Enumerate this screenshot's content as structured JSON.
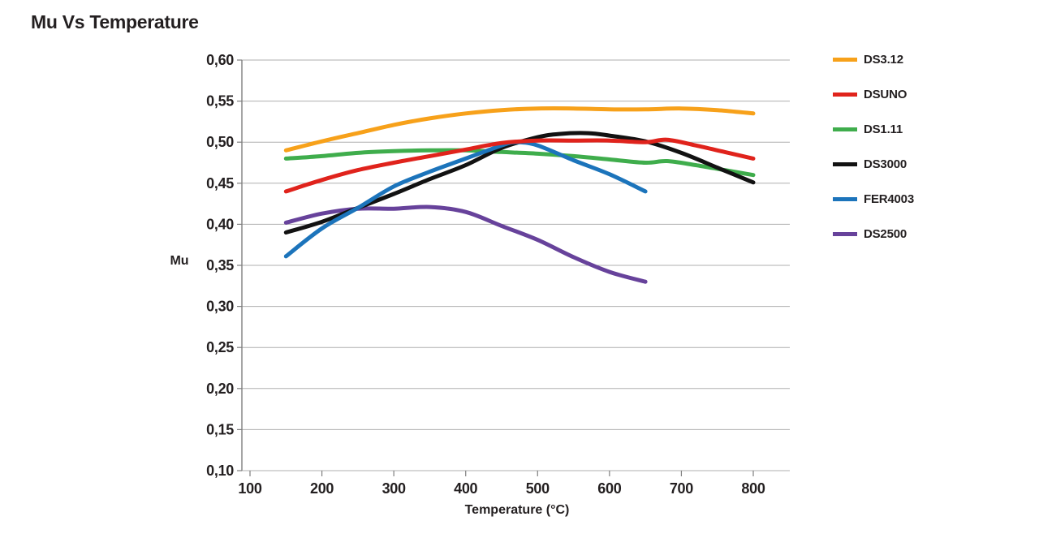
{
  "title": "Mu Vs Temperature",
  "colors": {
    "text": "#231F20",
    "grid": "#AFAFAF",
    "axis": "#7F7F7F",
    "background": "#FFFFFF"
  },
  "chart_data": {
    "type": "line",
    "title": "Mu Vs Temperature",
    "xlabel": "Temperature (°C)",
    "ylabel": "Mu",
    "xlim": [
      88,
      851
    ],
    "ylim": [
      0.1,
      0.6
    ],
    "x_ticks": [
      100,
      200,
      300,
      400,
      500,
      600,
      700,
      800
    ],
    "x_tick_labels": [
      "100",
      "200",
      "300",
      "400",
      "500",
      "600",
      "700",
      "800"
    ],
    "y_ticks": [
      0.1,
      0.15,
      0.2,
      0.25,
      0.3,
      0.35,
      0.4,
      0.45,
      0.5,
      0.55,
      0.6
    ],
    "y_tick_labels": [
      "0,10",
      "0,15",
      "0,20",
      "0,25",
      "0,30",
      "0,35",
      "0,40",
      "0,45",
      "0,50",
      "0,55",
      "0,60"
    ],
    "decimal_separator": ",",
    "grid": "horizontal",
    "legend_position": "right",
    "z_order": [
      "DS2500",
      "DS1.11",
      "DS3.12",
      "DS3000",
      "FER4003",
      "DSUNO"
    ],
    "series": [
      {
        "name": "DS3.12",
        "color": "#F7A11A",
        "points": [
          [
            150,
            0.49
          ],
          [
            200,
            0.501
          ],
          [
            250,
            0.511
          ],
          [
            300,
            0.521
          ],
          [
            350,
            0.529
          ],
          [
            400,
            0.535
          ],
          [
            450,
            0.539
          ],
          [
            500,
            0.541
          ],
          [
            550,
            0.541
          ],
          [
            600,
            0.54
          ],
          [
            650,
            0.54
          ],
          [
            700,
            0.541
          ],
          [
            750,
            0.539
          ],
          [
            800,
            0.535
          ]
        ]
      },
      {
        "name": "DSUNO",
        "color": "#E0231C",
        "points": [
          [
            150,
            0.44
          ],
          [
            200,
            0.454
          ],
          [
            250,
            0.466
          ],
          [
            300,
            0.475
          ],
          [
            350,
            0.483
          ],
          [
            400,
            0.491
          ],
          [
            450,
            0.499
          ],
          [
            500,
            0.502
          ],
          [
            550,
            0.502
          ],
          [
            600,
            0.502
          ],
          [
            650,
            0.5
          ],
          [
            680,
            0.503
          ],
          [
            720,
            0.496
          ],
          [
            760,
            0.488
          ],
          [
            800,
            0.48
          ]
        ]
      },
      {
        "name": "DS1.11",
        "color": "#3FAD4C",
        "points": [
          [
            150,
            0.48
          ],
          [
            200,
            0.483
          ],
          [
            250,
            0.487
          ],
          [
            300,
            0.489
          ],
          [
            350,
            0.49
          ],
          [
            400,
            0.49
          ],
          [
            450,
            0.488
          ],
          [
            500,
            0.486
          ],
          [
            550,
            0.483
          ],
          [
            600,
            0.479
          ],
          [
            650,
            0.475
          ],
          [
            680,
            0.477
          ],
          [
            720,
            0.472
          ],
          [
            760,
            0.466
          ],
          [
            800,
            0.46
          ]
        ]
      },
      {
        "name": "DS3000",
        "color": "#121212",
        "points": [
          [
            150,
            0.39
          ],
          [
            200,
            0.403
          ],
          [
            250,
            0.42
          ],
          [
            300,
            0.437
          ],
          [
            350,
            0.455
          ],
          [
            400,
            0.472
          ],
          [
            450,
            0.493
          ],
          [
            500,
            0.506
          ],
          [
            530,
            0.51
          ],
          [
            570,
            0.511
          ],
          [
            600,
            0.508
          ],
          [
            650,
            0.501
          ],
          [
            700,
            0.487
          ],
          [
            750,
            0.469
          ],
          [
            800,
            0.451
          ]
        ]
      },
      {
        "name": "FER4003",
        "color": "#1C74BB",
        "points": [
          [
            150,
            0.361
          ],
          [
            200,
            0.395
          ],
          [
            250,
            0.42
          ],
          [
            300,
            0.446
          ],
          [
            350,
            0.464
          ],
          [
            400,
            0.48
          ],
          [
            450,
            0.496
          ],
          [
            470,
            0.5
          ],
          [
            500,
            0.496
          ],
          [
            550,
            0.478
          ],
          [
            600,
            0.461
          ],
          [
            650,
            0.44
          ]
        ]
      },
      {
        "name": "DS2500",
        "color": "#67429B",
        "points": [
          [
            150,
            0.402
          ],
          [
            200,
            0.413
          ],
          [
            250,
            0.419
          ],
          [
            300,
            0.419
          ],
          [
            350,
            0.421
          ],
          [
            400,
            0.415
          ],
          [
            450,
            0.398
          ],
          [
            500,
            0.381
          ],
          [
            550,
            0.36
          ],
          [
            600,
            0.342
          ],
          [
            650,
            0.33
          ]
        ]
      }
    ]
  }
}
